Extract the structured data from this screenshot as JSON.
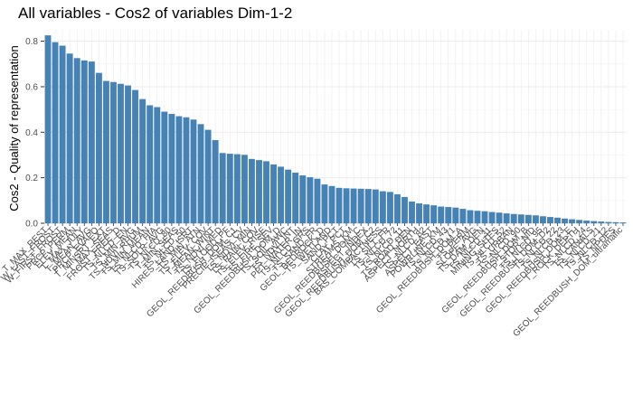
{
  "chart_data": {
    "type": "bar",
    "title": "All variables - Cos2 of variables Dim-1-2",
    "xlabel": "",
    "ylabel": "Cos2 - Quality of representation",
    "ylim": [
      0,
      0.85
    ],
    "yticks": [
      "0.0",
      "0.2",
      "0.4",
      "0.6",
      "0.8"
    ],
    "grid": true,
    "bar_color": "#4682B4",
    "categories": [
      "T_MAX_REST",
      "W_LAST_FROST",
      "W_FIRST_FROST",
      "PRCP_PERM",
      "ELEV_MEAN",
      "T_MAX_JULY",
      "T_MEAN_AVG",
      "PRCP_EVAPO",
      "T_MINSRT_EXT",
      "T_MAX_SEAS",
      "FROST_FREE_D",
      "TS_NLCD_EN",
      "TS_MIN_AVG",
      "TS_NDVI_RHUM",
      "TS_MIN_MEAN",
      "TS_NLCD_HIA",
      "TS_SOLR_AVG",
      "TS_NLCD_80",
      "T_MIN_SEAS",
      "TS_NLCD_50",
      "HIRES_LAND_ISRT",
      "TS_MIN_ATN",
      "TS_ELEV_COV",
      "T_MEAN_WINT",
      "TS_NDVI_MED",
      "TS_FLOOD_PF",
      "GEOL_REEDBUSH_DOM_C1",
      "PRECIP_ISEAS_CV",
      "TS_NDVI_MIN",
      "TS_RAIN_COV",
      "TS_ELEV_RISE",
      "TS_FIRE_SEV",
      "GEOL_REEDBUSH_DOM_D",
      "TS_SOIL_AWC",
      "TS_NDVI_INT",
      "PPT_WATER_IN",
      "TS_NLCD_GRS",
      "TS_SAND_FR",
      "GEOL_BEDROCK_D",
      "TS_WETLAND",
      "SAND_PCT",
      "CLAY_PCT",
      "STREAMS_KM",
      "GEOL_REEDBUSH_DOM_C",
      "ASPECT_INDEX",
      "GEOL_REEDBUSH_DOM_C2",
      "BAS_COMPACTNESS",
      "TS_SILT_FR",
      "TS_NLCD_72",
      "TS_NLCD_11",
      "TS_ROAD_DEN",
      "ASPECT_NORTH",
      "TS_NLCD_82",
      "ASPECT_EAST",
      "POWRLINE_KM",
      "TS_NLCD_43",
      "TS_NLCD_71",
      "GEOL_REEDBUSH_DOM_A",
      "TS_PERM",
      "SLOPE_AVG",
      "TS_DAM_DEN",
      "TS_NLCD_31",
      "MINING_SITES",
      "TS_NLCD_52",
      "TS_URBAN",
      "TS_NLCD_90",
      "GEOL_REEDBUSH_DOM_B",
      "P_STOR_NID",
      "TS_NLCD_95",
      "GEOL_REEDBUSH_DOM_D2",
      "TS_NLCD_22",
      "TS_NLCD_23",
      "GEOL_REEDBUSH_DOM_E",
      "T_ROCK_DEPTH",
      "TS_NLCD_24",
      "TS_CANALS",
      "TS_NLCD_21",
      "TS_NLCD_12",
      "TS_NPDES",
      "GEOL_REEDBUSH_DOM_ultramafic"
    ],
    "values": [
      0.825,
      0.795,
      0.78,
      0.745,
      0.725,
      0.715,
      0.71,
      0.66,
      0.625,
      0.62,
      0.612,
      0.605,
      0.585,
      0.545,
      0.518,
      0.51,
      0.49,
      0.48,
      0.47,
      0.465,
      0.455,
      0.435,
      0.41,
      0.365,
      0.308,
      0.305,
      0.303,
      0.3,
      0.282,
      0.277,
      0.272,
      0.258,
      0.248,
      0.235,
      0.222,
      0.21,
      0.202,
      0.195,
      0.17,
      0.163,
      0.155,
      0.153,
      0.152,
      0.151,
      0.15,
      0.148,
      0.14,
      0.137,
      0.127,
      0.115,
      0.095,
      0.087,
      0.082,
      0.078,
      0.073,
      0.071,
      0.068,
      0.063,
      0.057,
      0.054,
      0.052,
      0.049,
      0.046,
      0.043,
      0.04,
      0.038,
      0.036,
      0.034,
      0.03,
      0.027,
      0.024,
      0.02,
      0.017,
      0.014,
      0.011,
      0.009,
      0.007,
      0.005,
      0.004,
      0.003
    ]
  }
}
